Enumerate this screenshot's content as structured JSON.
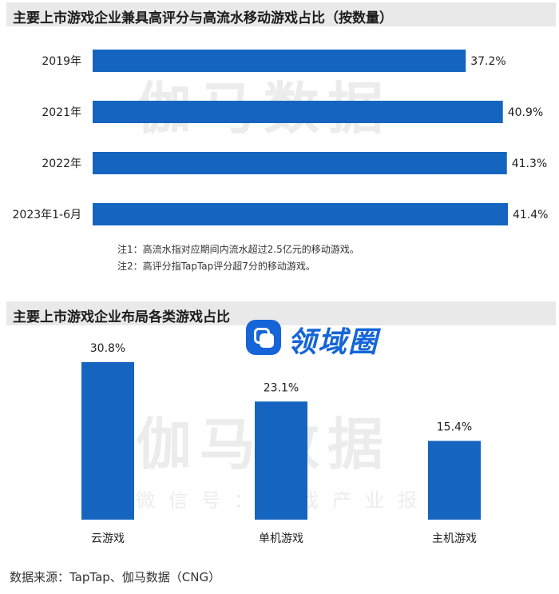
{
  "section1": {
    "title": "主要上市游戏企业兼具高评分与高流水移动游戏占比（按数量）",
    "notes": [
      "注1：高流水指对应期间内流水超过2.5亿元的移动游戏。",
      "注2：高评分指TapTap评分超7分的移动游戏。"
    ]
  },
  "section2": {
    "title": "主要上市游戏企业布局各类游戏占比"
  },
  "watermark": {
    "main": "伽马数据",
    "sub": "微信号：游戏产业报告"
  },
  "badge": {
    "text": "领域圈"
  },
  "source": "数据来源：TapTap、伽马数据（CNG）",
  "colors": {
    "bar": "#1565c0",
    "header_bg": "#e9e9e9",
    "badge": "#1565d8"
  },
  "chart_data": [
    {
      "type": "bar",
      "orientation": "horizontal",
      "title": "主要上市游戏企业兼具高评分与高流水移动游戏占比（按数量）",
      "categories": [
        "2019年",
        "2021年",
        "2022年",
        "2023年1-6月"
      ],
      "values": [
        37.2,
        40.9,
        41.3,
        41.4
      ],
      "labels": [
        "37.2%",
        "40.9%",
        "41.3%",
        "41.4%"
      ],
      "unit": "%",
      "xlim": [
        0,
        41.4
      ],
      "grid": false
    },
    {
      "type": "bar",
      "orientation": "vertical",
      "title": "主要上市游戏企业布局各类游戏占比",
      "categories": [
        "云游戏",
        "单机游戏",
        "主机游戏"
      ],
      "values": [
        30.8,
        23.1,
        15.4
      ],
      "labels": [
        "30.8%",
        "23.1%",
        "15.4%"
      ],
      "unit": "%",
      "ylim": [
        0,
        30.8
      ],
      "grid": false
    }
  ]
}
